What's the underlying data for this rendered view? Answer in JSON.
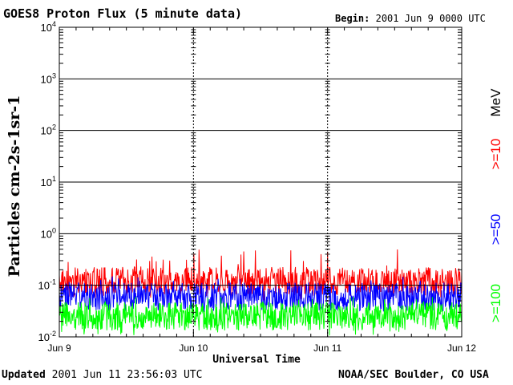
{
  "header": {
    "title": "GOES8 Proton Flux (5 minute data)",
    "begin_label": "Begin:",
    "begin_value": "2001 Jun 9 0000 UTC"
  },
  "footer": {
    "updated_label": "Updated",
    "updated_value": "2001 Jun 11 23:56:03 UTC",
    "source": "NOAA/SEC Boulder, CO USA"
  },
  "colors": {
    "ge10": "#ff0000",
    "ge50": "#0000ff",
    "ge100": "#00ff00",
    "axis": "#000000"
  },
  "chart_data": {
    "type": "line",
    "title": "GOES8 Proton Flux (5 minute data)",
    "xlabel": "Universal Time",
    "ylabel": "Particles cm-2s-1sr-1",
    "y_scale": "log",
    "ylim": [
      0.01,
      10000
    ],
    "xlim": [
      0,
      72
    ],
    "x_units": "hours since 2001 Jun 9 0000 UTC",
    "x_tick_labels": [
      "Jun 9",
      "Jun 10",
      "Jun 11",
      "Jun 12"
    ],
    "x_ticks_hours": [
      0,
      24,
      48,
      72
    ],
    "y_tick_labels": [
      {
        "base": "10",
        "exp": "-2",
        "value": 0.01
      },
      {
        "base": "10",
        "exp": "-1",
        "value": 0.1
      },
      {
        "base": "10",
        "exp": "0",
        "value": 1
      },
      {
        "base": "10",
        "exp": "1",
        "value": 10
      },
      {
        "base": "10",
        "exp": "2",
        "value": 100
      },
      {
        "base": "10",
        "exp": "3",
        "value": 1000
      },
      {
        "base": "10",
        "exp": "4",
        "value": 10000
      }
    ],
    "grid": true,
    "legend_placement": "right",
    "legend_unit": "MeV",
    "series": [
      {
        "name": ">=10",
        "color": "#ff0000",
        "typical_value": 0.12,
        "range": [
          0.05,
          0.5
        ]
      },
      {
        "name": ">=50",
        "color": "#0000ff",
        "typical_value": 0.06,
        "range": [
          0.03,
          0.15
        ]
      },
      {
        "name": ">=100",
        "color": "#00ff00",
        "typical_value": 0.025,
        "range": [
          0.01,
          0.06
        ]
      }
    ]
  }
}
